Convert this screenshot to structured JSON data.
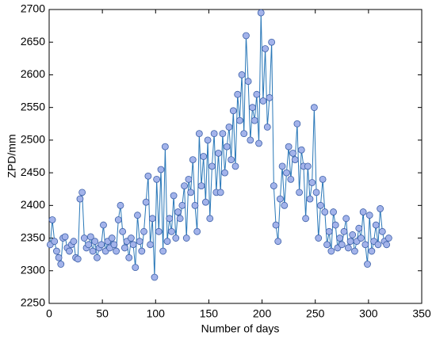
{
  "chart_data": {
    "type": "line",
    "xlabel": "Number of days",
    "ylabel": "ZPD/mm",
    "xlim": [
      0,
      350
    ],
    "xticks": [
      0,
      50,
      100,
      150,
      200,
      250,
      300,
      350
    ],
    "ylim": [
      2250,
      2700
    ],
    "yticks": [
      2250,
      2300,
      2350,
      2400,
      2450,
      2500,
      2550,
      2600,
      2650,
      2700
    ],
    "grid": false,
    "x": [
      1,
      3,
      5,
      7,
      9,
      11,
      13,
      15,
      17,
      19,
      21,
      23,
      25,
      27,
      29,
      31,
      33,
      35,
      37,
      39,
      41,
      43,
      45,
      47,
      49,
      51,
      53,
      55,
      57,
      59,
      61,
      63,
      65,
      67,
      69,
      71,
      73,
      75,
      77,
      79,
      81,
      83,
      85,
      87,
      89,
      91,
      93,
      95,
      97,
      99,
      101,
      103,
      105,
      107,
      109,
      111,
      113,
      115,
      117,
      119,
      121,
      123,
      125,
      127,
      129,
      131,
      133,
      135,
      137,
      139,
      141,
      143,
      145,
      147,
      149,
      151,
      153,
      155,
      157,
      159,
      161,
      163,
      165,
      167,
      169,
      171,
      173,
      175,
      177,
      179,
      181,
      183,
      185,
      187,
      189,
      191,
      193,
      195,
      197,
      199,
      201,
      203,
      205,
      207,
      209,
      211,
      213,
      215,
      217,
      219,
      221,
      223,
      225,
      227,
      229,
      231,
      233,
      235,
      237,
      239,
      241,
      243,
      245,
      247,
      249,
      251,
      253,
      255,
      257,
      259,
      261,
      263,
      265,
      267,
      269,
      271,
      273,
      275,
      277,
      279,
      281,
      283,
      285,
      287,
      289,
      291,
      293,
      295,
      297,
      299,
      301,
      303,
      305,
      307,
      309,
      311,
      313,
      315,
      317,
      319
    ],
    "series": [
      {
        "color": "#2a78b8",
        "marker_color": "#a3b3ea",
        "marker_edge": "#3b5fa8",
        "values": [
          2340,
          2378,
          2345,
          2330,
          2320,
          2310,
          2350,
          2352,
          2335,
          2330,
          2340,
          2345,
          2320,
          2318,
          2410,
          2420,
          2350,
          2335,
          2340,
          2352,
          2330,
          2345,
          2320,
          2335,
          2340,
          2370,
          2330,
          2345,
          2335,
          2350,
          2340,
          2330,
          2378,
          2400,
          2360,
          2335,
          2345,
          2320,
          2350,
          2340,
          2305,
          2385,
          2345,
          2330,
          2360,
          2405,
          2445,
          2340,
          2380,
          2290,
          2440,
          2360,
          2455,
          2330,
          2490,
          2345,
          2380,
          2360,
          2415,
          2350,
          2390,
          2380,
          2400,
          2430,
          2350,
          2440,
          2420,
          2470,
          2400,
          2360,
          2510,
          2430,
          2475,
          2405,
          2500,
          2380,
          2460,
          2510,
          2420,
          2480,
          2420,
          2510,
          2450,
          2490,
          2520,
          2470,
          2545,
          2460,
          2570,
          2530,
          2600,
          2510,
          2660,
          2590,
          2500,
          2550,
          2530,
          2570,
          2495,
          2695,
          2560,
          2640,
          2520,
          2565,
          2650,
          2430,
          2370,
          2345,
          2410,
          2460,
          2400,
          2450,
          2490,
          2440,
          2480,
          2470,
          2525,
          2420,
          2485,
          2460,
          2380,
          2460,
          2410,
          2435,
          2550,
          2420,
          2350,
          2400,
          2440,
          2390,
          2340,
          2360,
          2330,
          2390,
          2370,
          2335,
          2350,
          2340,
          2360,
          2380,
          2335,
          2345,
          2355,
          2330,
          2345,
          2365,
          2350,
          2390,
          2340,
          2310,
          2385,
          2330,
          2345,
          2370,
          2340,
          2395,
          2360,
          2345,
          2340,
          2350
        ]
      }
    ]
  }
}
